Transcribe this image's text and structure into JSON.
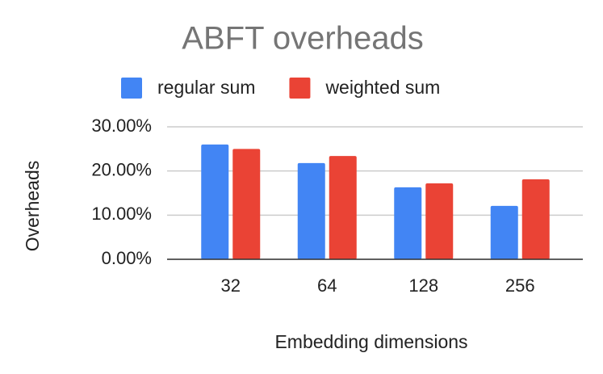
{
  "chart_data": {
    "type": "bar",
    "title": "ABFT overheads",
    "x_label": "Embedding dimensions",
    "y_label": "Overheads",
    "categories": [
      "32",
      "64",
      "128",
      "256"
    ],
    "series": [
      {
        "name": "regular sum",
        "color": "#4285f4",
        "values": [
          26.0,
          21.8,
          16.3,
          12.1
        ]
      },
      {
        "name": "weighted sum",
        "color": "#ea4335",
        "values": [
          25.0,
          23.4,
          17.2,
          18.1
        ]
      }
    ],
    "ylim": [
      0,
      30
    ],
    "yticks": [
      {
        "value": 0,
        "label": "0.00%"
      },
      {
        "value": 10,
        "label": "10.00%"
      },
      {
        "value": 20,
        "label": "20.00%"
      },
      {
        "value": 30,
        "label": "30.00%"
      }
    ],
    "grid": true,
    "legend": "top"
  }
}
